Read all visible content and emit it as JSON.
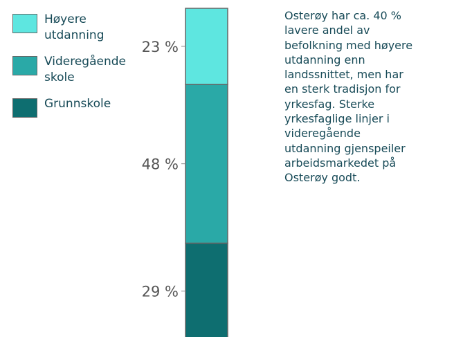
{
  "chart_data": {
    "type": "stacked-bar",
    "series": [
      {
        "name": "Høyere utdanning",
        "color": "#5ee6e0",
        "values": [
          23
        ],
        "value_labels": [
          "23 %"
        ]
      },
      {
        "name": "Videregående skole",
        "color": "#2aa9a7",
        "values": [
          48
        ],
        "value_labels": [
          "48 %"
        ]
      },
      {
        "name": "Grunnskole",
        "color": "#0e6e70",
        "values": [
          29
        ],
        "value_labels": [
          "29 %"
        ]
      }
    ],
    "ylim": [
      0,
      100
    ],
    "annotation": [
      "Osterøy har ca. 40 %",
      "lavere andel av",
      "befolkning med høyere",
      "utdanning enn",
      "landssnittet, men har",
      "en sterk tradisjon for",
      "yrkesfag. Sterke",
      "yrkesfaglige linjer i",
      "videregående",
      "utdanning gjenspeiler",
      "arbeidsmarkedet på",
      "Osterøy godt."
    ]
  }
}
